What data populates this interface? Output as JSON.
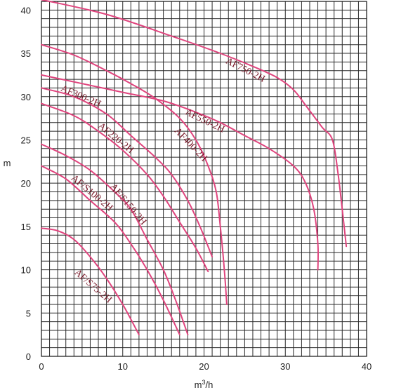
{
  "chart_data": {
    "type": "line",
    "title": "",
    "xlabel": "m³/h",
    "ylabel": "m",
    "xlim": [
      0,
      40
    ],
    "ylim": [
      0,
      41
    ],
    "grid": true,
    "x_ticks": [
      0,
      10,
      20,
      30,
      40
    ],
    "y_ticks": [
      0,
      5,
      10,
      15,
      20,
      25,
      30,
      35,
      40
    ],
    "line_color": "#e0457e",
    "label_color": "#7a1a2a",
    "series": [
      {
        "name": "AF750-2H",
        "points": [
          [
            0,
            41.2
          ],
          [
            8,
            39.5
          ],
          [
            16,
            37.0
          ],
          [
            22,
            35.0
          ],
          [
            26,
            33.5
          ],
          [
            29,
            32.2
          ],
          [
            31,
            30.8
          ],
          [
            32.5,
            29.0
          ],
          [
            34.5,
            26.5
          ],
          [
            35.8,
            25.0
          ],
          [
            36.5,
            21.0
          ],
          [
            37,
            17.0
          ],
          [
            37.5,
            12.7
          ]
        ]
      },
      {
        "name": "AF550-2H",
        "points": [
          [
            0,
            32.5
          ],
          [
            5,
            31.5
          ],
          [
            10,
            30.5
          ],
          [
            15,
            29.5
          ],
          [
            19,
            28.2
          ],
          [
            22,
            27.0
          ],
          [
            25,
            25.5
          ],
          [
            28,
            24.0
          ],
          [
            31,
            22.0
          ],
          [
            32.5,
            20.0
          ],
          [
            33.5,
            17.0
          ],
          [
            34,
            13.0
          ],
          [
            34,
            10.0
          ]
        ]
      },
      {
        "name": "AF400-2H",
        "points": [
          [
            0,
            36.0
          ],
          [
            4,
            34.8
          ],
          [
            8,
            33.0
          ],
          [
            11,
            31.5
          ],
          [
            14,
            29.8
          ],
          [
            17,
            27.5
          ],
          [
            19,
            25.0
          ],
          [
            20.5,
            22.0
          ],
          [
            21.5,
            19.0
          ],
          [
            22,
            15.0
          ],
          [
            22.5,
            10.0
          ],
          [
            22.8,
            6.0
          ]
        ]
      },
      {
        "name": "AF300-2H",
        "points": [
          [
            0,
            31.0
          ],
          [
            4,
            30.0
          ],
          [
            8,
            28.0
          ],
          [
            11,
            25.5
          ],
          [
            14,
            23.0
          ],
          [
            16,
            21.0
          ],
          [
            18,
            18.0
          ],
          [
            19.5,
            15.0
          ],
          [
            21,
            11.5
          ]
        ]
      },
      {
        "name": "AF220-2H",
        "points": [
          [
            0,
            29.2
          ],
          [
            4,
            27.8
          ],
          [
            7,
            26.0
          ],
          [
            10,
            23.8
          ],
          [
            13,
            21.0
          ],
          [
            15,
            18.5
          ],
          [
            17,
            15.5
          ],
          [
            19,
            12.5
          ],
          [
            20.5,
            9.8
          ]
        ]
      },
      {
        "name": "AF/S150-2H",
        "points": [
          [
            0,
            24.5
          ],
          [
            3,
            23.2
          ],
          [
            6,
            21.5
          ],
          [
            9,
            19.0
          ],
          [
            11,
            17.0
          ],
          [
            13,
            13.5
          ],
          [
            15,
            10.0
          ],
          [
            16.5,
            6.5
          ],
          [
            18,
            2.5
          ]
        ]
      },
      {
        "name": "AF/S100-2H",
        "points": [
          [
            0,
            22.0
          ],
          [
            3,
            20.5
          ],
          [
            6,
            18.0
          ],
          [
            9,
            15.5
          ],
          [
            11,
            13.0
          ],
          [
            13,
            10.0
          ],
          [
            15,
            6.5
          ],
          [
            17,
            2.5
          ]
        ]
      },
      {
        "name": "AF/S75-2H",
        "points": [
          [
            0,
            14.8
          ],
          [
            2,
            14.5
          ],
          [
            4,
            13.5
          ],
          [
            6,
            11.5
          ],
          [
            8,
            9.0
          ],
          [
            10,
            6.0
          ],
          [
            12,
            2.5
          ]
        ]
      }
    ],
    "annotations": [
      {
        "text": "AF750-2H",
        "x": 22.6,
        "y": 33.9,
        "rotate": 27
      },
      {
        "text": "AF550-2H",
        "x": 17.6,
        "y": 28.0,
        "rotate": 26
      },
      {
        "text": "AF400-2H",
        "x": 16.3,
        "y": 26.0,
        "rotate": 46
      },
      {
        "text": "AF300-2H",
        "x": 2.3,
        "y": 30.7,
        "rotate": 23
      },
      {
        "text": "AF220-2H",
        "x": 6.9,
        "y": 26.5,
        "rotate": 39
      },
      {
        "text": "AF/S150-2H",
        "x": 8.4,
        "y": 19.6,
        "rotate": 50
      },
      {
        "text": "AF/S100-2H",
        "x": 3.6,
        "y": 20.5,
        "rotate": 40
      },
      {
        "text": "AF/S75-2H",
        "x": 4.0,
        "y": 9.6,
        "rotate": 41
      }
    ]
  }
}
